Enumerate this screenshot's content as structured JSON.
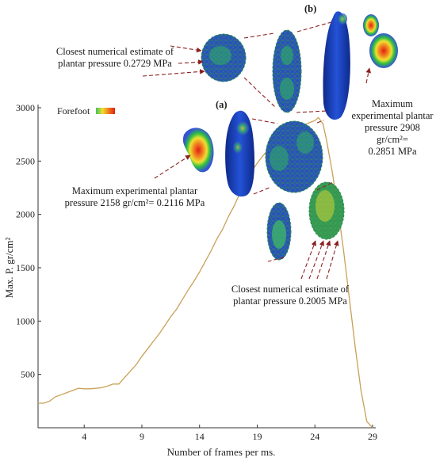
{
  "chart_data": {
    "type": "line",
    "title": "",
    "xlabel": "Number of frames per ms.",
    "ylabel": "Max. P. gr/cm²",
    "xlim": [
      0,
      29
    ],
    "ylim": [
      0,
      3000
    ],
    "x_ticks": [
      4,
      9,
      14,
      19,
      24,
      29
    ],
    "y_ticks": [
      500,
      1000,
      1500,
      2000,
      2500,
      3000
    ],
    "grid": false,
    "legend": {
      "position": "top-left",
      "label": "Forefoot"
    },
    "series": [
      {
        "color": "#c8a157",
        "points": [
          [
            0,
            230
          ],
          [
            0.5,
            230
          ],
          [
            1,
            250
          ],
          [
            1.5,
            290
          ],
          [
            2,
            310
          ],
          [
            2.5,
            330
          ],
          [
            3,
            350
          ],
          [
            3.5,
            370
          ],
          [
            4,
            365
          ],
          [
            4.5,
            365
          ],
          [
            5,
            370
          ],
          [
            5.5,
            375
          ],
          [
            6,
            390
          ],
          [
            6.5,
            410
          ],
          [
            7,
            410
          ],
          [
            7.5,
            470
          ],
          [
            8,
            530
          ],
          [
            8.5,
            590
          ],
          [
            9,
            670
          ],
          [
            9.5,
            740
          ],
          [
            10,
            810
          ],
          [
            10.5,
            880
          ],
          [
            11,
            960
          ],
          [
            11.5,
            1040
          ],
          [
            12,
            1110
          ],
          [
            12.5,
            1200
          ],
          [
            13,
            1290
          ],
          [
            13.5,
            1370
          ],
          [
            14,
            1460
          ],
          [
            14.5,
            1560
          ],
          [
            15,
            1660
          ],
          [
            15.5,
            1770
          ],
          [
            16,
            1860
          ],
          [
            16.5,
            1980
          ],
          [
            17,
            2080
          ],
          [
            17.5,
            2200
          ],
          [
            18,
            2290
          ],
          [
            18.5,
            2400
          ],
          [
            19,
            2480
          ],
          [
            19.5,
            2550
          ],
          [
            20,
            2610
          ],
          [
            20.5,
            2660
          ],
          [
            21,
            2700
          ],
          [
            21.5,
            2740
          ],
          [
            22,
            2770
          ],
          [
            22.5,
            2800
          ],
          [
            23,
            2830
          ],
          [
            23.5,
            2860
          ],
          [
            24,
            2880
          ],
          [
            24.3,
            2908
          ],
          [
            24.7,
            2850
          ],
          [
            25,
            2700
          ],
          [
            25.5,
            2400
          ],
          [
            26,
            2050
          ],
          [
            26.5,
            1650
          ],
          [
            27,
            1200
          ],
          [
            27.5,
            750
          ],
          [
            28,
            350
          ],
          [
            28.5,
            60
          ],
          [
            29,
            0
          ]
        ]
      }
    ],
    "panels": [
      "(a)",
      "(b)"
    ],
    "annotations": [
      "Closest numerical estimate of plantar pressure 0.2729 MPa",
      "Maximum experimental plantar pressure 2908 gr/cm²= 0.2851 MPa",
      "Maximum experimental plantar pressure 2158 gr/cm²= 0.2116 MPa",
      "Closest numerical estimate of plantar pressure 0.2005 MPa"
    ]
  },
  "annotations": {
    "top_left_line1": "Closest numerical estimate of",
    "top_left_line2": "plantar pressure 0.2729 MPa",
    "right_line1": "Maximum",
    "right_line2": "experimental plantar",
    "right_line3": "pressure 2908 gr/cm²=",
    "right_line4": "0.2851 MPa",
    "mid_left_line1": "Maximum experimental plantar",
    "mid_left_line2": "pressure 2158 gr/cm²= 0.2116 MPa",
    "bottom_line1": "Closest numerical estimate of",
    "bottom_line2": "plantar pressure 0.2005 MPa",
    "panel_a": "(a)",
    "panel_b": "(b)"
  },
  "colors": {
    "curve": "#c8a157",
    "foot_model": "#1a3fb8",
    "mesh": "#2d8a5a",
    "dashed_leader": "#8b2020",
    "heat_hot": "#e02010",
    "heat_warm": "#f0c020",
    "heat_mid": "#30c040"
  },
  "icons": [
    "forefoot-legend-swatch",
    "foot-model-image",
    "pressure-heatmap-image",
    "zoom-ellipse-image"
  ]
}
